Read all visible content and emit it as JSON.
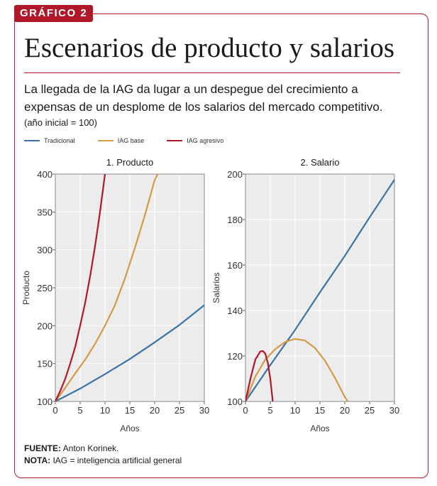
{
  "header": {
    "tag": "GRÁFICO 2",
    "title": "Escenarios de producto y salarios",
    "subtitle": "La llegada de la IAG da lugar a un despegue del crecimiento a expensas de un desplome de los salarios del mercado competitivo.",
    "note": "(año inicial = 100)"
  },
  "legend": [
    {
      "label": "Tradicional",
      "color": "#3a73a8"
    },
    {
      "label": "IAG base",
      "color": "#d49a45"
    },
    {
      "label": "IAG agresivo",
      "color": "#b0182a"
    }
  ],
  "footer": {
    "source_label": "FUENTE:",
    "source_text": "Anton Korinek.",
    "note_label": "NOTA:",
    "note_text": "IAG = inteligencia artificial general"
  },
  "chart_data": [
    {
      "type": "line",
      "title": "1. Producto",
      "xlabel": "Años",
      "ylabel": "Producto",
      "xlim": [
        0,
        30
      ],
      "ylim": [
        100,
        400
      ],
      "xticks": [
        0,
        5,
        10,
        15,
        20,
        25,
        30
      ],
      "yticks": [
        100,
        150,
        200,
        250,
        300,
        350,
        400
      ],
      "grid": true,
      "series": [
        {
          "name": "Tradicional",
          "color": "#3a73a8",
          "x": [
            0,
            5,
            10,
            15,
            20,
            25,
            30
          ],
          "y": [
            100,
            117,
            136,
            156,
            178,
            201,
            227
          ]
        },
        {
          "name": "IAG base",
          "color": "#d49a45",
          "x": [
            0,
            2,
            4,
            6,
            8,
            10,
            12,
            14,
            16,
            18,
            20,
            20.6
          ],
          "y": [
            100,
            118,
            137,
            155,
            176,
            200,
            227,
            262,
            302,
            345,
            392,
            400
          ]
        },
        {
          "name": "IAG agresivo",
          "color": "#b0182a",
          "x": [
            0,
            1,
            2,
            3,
            4,
            5,
            6,
            7,
            8,
            9,
            10
          ],
          "y": [
            100,
            114,
            130,
            150,
            172,
            200,
            230,
            265,
            305,
            350,
            400
          ]
        }
      ]
    },
    {
      "type": "line",
      "title": "2. Salario",
      "xlabel": "Años",
      "ylabel": "Salarios",
      "xlim": [
        0,
        30
      ],
      "ylim": [
        100,
        200
      ],
      "xticks": [
        0,
        5,
        10,
        15,
        20,
        25,
        30
      ],
      "yticks": [
        100,
        120,
        140,
        160,
        180,
        200
      ],
      "grid": true,
      "series": [
        {
          "name": "Tradicional",
          "color": "#3a73a8",
          "x": [
            0,
            5,
            10,
            15,
            20,
            25,
            30
          ],
          "y": [
            100,
            116,
            131.5,
            148,
            164,
            181,
            197.5
          ]
        },
        {
          "name": "IAG base",
          "color": "#d49a45",
          "x": [
            0,
            2,
            4,
            6,
            8,
            10,
            12,
            14,
            16,
            18,
            20,
            20.6
          ],
          "y": [
            100,
            111,
            118.5,
            123,
            126.2,
            127.5,
            126.8,
            123.5,
            118,
            110.5,
            102,
            100
          ]
        },
        {
          "name": "IAG agresivo",
          "color": "#b0182a",
          "x": [
            0,
            1,
            2,
            3,
            3.5,
            4,
            4.5,
            5,
            5.5
          ],
          "y": [
            100,
            110,
            118.5,
            122,
            122.2,
            121,
            117,
            110,
            100
          ]
        }
      ]
    }
  ]
}
